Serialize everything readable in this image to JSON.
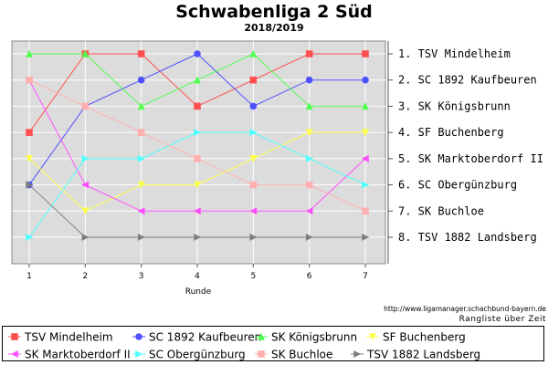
{
  "chart_data": {
    "type": "line",
    "title": "Schwabenliga 2 Süd",
    "subtitle": "2018/2019",
    "xlabel": "Runde",
    "ylabel": "",
    "x": [
      1,
      2,
      3,
      4,
      5,
      6,
      7
    ],
    "ylim": [
      1,
      8
    ],
    "y_inverted": true,
    "grid": true,
    "right_labels": [
      "1. TSV Mindelheim",
      "2. SC 1892 Kaufbeuren",
      "3. SK Königsbrunn",
      "4. SF Buchenberg",
      "5. SK Marktoberdorf II",
      "6. SC Obergünzburg",
      "7. SK Buchloe",
      "8. TSV 1882 Landsberg"
    ],
    "legend_position": "bottom",
    "series": [
      {
        "name": "TSV Mindelheim",
        "color": "#ff5050",
        "marker": "square",
        "values": [
          4,
          1,
          1,
          3,
          2,
          1,
          1
        ]
      },
      {
        "name": "SC 1892 Kaufbeuren",
        "color": "#5050ff",
        "marker": "circle",
        "values": [
          6,
          3,
          2,
          1,
          3,
          2,
          2
        ]
      },
      {
        "name": "SK Königsbrunn",
        "color": "#50ff50",
        "marker": "triangle-up",
        "values": [
          1,
          1,
          3,
          2,
          1,
          3,
          3
        ]
      },
      {
        "name": "SF Buchenberg",
        "color": "#ffff50",
        "marker": "triangle-down",
        "values": [
          5,
          7,
          6,
          6,
          5,
          4,
          4
        ]
      },
      {
        "name": "SK Marktoberdorf II",
        "color": "#ff50ff",
        "marker": "triangle-left",
        "values": [
          2,
          6,
          7,
          7,
          7,
          7,
          5
        ]
      },
      {
        "name": "SC Obergünzburg",
        "color": "#50ffff",
        "marker": "triangle-right",
        "values": [
          8,
          5,
          5,
          4,
          4,
          5,
          6
        ]
      },
      {
        "name": "SK Buchloe",
        "color": "#ffb0b0",
        "marker": "square",
        "values": [
          2,
          3,
          4,
          5,
          6,
          6,
          7
        ]
      },
      {
        "name": "TSV 1882 Landsberg",
        "color": "#808080",
        "marker": "triangle-right",
        "values": [
          6,
          8,
          8,
          8,
          8,
          8,
          8
        ]
      }
    ],
    "source_url": "http://www.ligamanager.schachbund-bayern.de",
    "caption": "Rangliste über Zeit"
  }
}
